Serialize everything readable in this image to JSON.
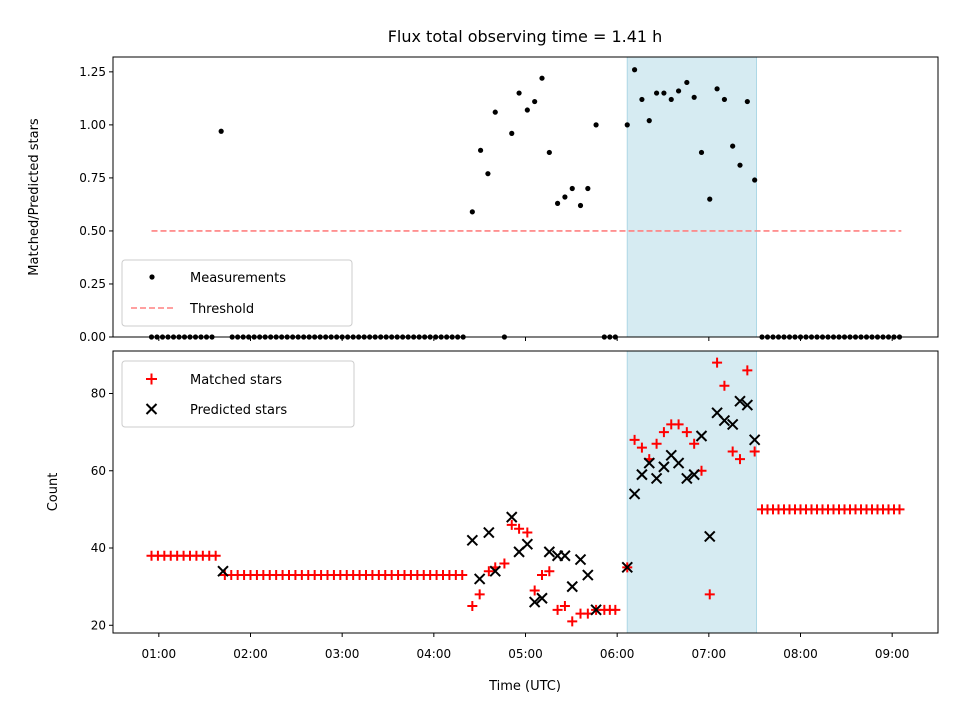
{
  "chart_data": {
    "type": "scatter",
    "title": "Flux total observing time = 1.41 h",
    "xlabel": "Time (UTC)",
    "x_ticks": [
      {
        "t": 1,
        "label": "01:00"
      },
      {
        "t": 2,
        "label": "02:00"
      },
      {
        "t": 3,
        "label": "03:00"
      },
      {
        "t": 4,
        "label": "04:00"
      },
      {
        "t": 5,
        "label": "05:00"
      },
      {
        "t": 6,
        "label": "06:00"
      },
      {
        "t": 7,
        "label": "07:00"
      },
      {
        "t": 8,
        "label": "08:00"
      },
      {
        "t": 9,
        "label": "09:00"
      }
    ],
    "xlim": [
      0.5,
      9.5
    ],
    "highlight_span": [
      6.11,
      7.52
    ],
    "colors": {
      "measure": "#000000",
      "threshold": "#ff8080",
      "matched": "#ff0000",
      "predicted": "#000000",
      "span": "#add8e6"
    },
    "top": {
      "ylabel": "Matched/Predicted stars",
      "ylim": [
        0,
        1.32
      ],
      "y_ticks": [
        "0.00",
        "0.25",
        "0.50",
        "0.75",
        "1.00",
        "1.25"
      ],
      "legend": {
        "measure": "Measurements",
        "threshold": "Threshold"
      },
      "legend_loc": "lower left",
      "threshold": {
        "value": 0.5,
        "x": [
          0.92,
          9.1
        ]
      },
      "points": [
        [
          0.92,
          0
        ],
        [
          0.98,
          0
        ],
        [
          1.04,
          0
        ],
        [
          1.1,
          0
        ],
        [
          1.16,
          0
        ],
        [
          1.22,
          0
        ],
        [
          1.28,
          0
        ],
        [
          1.34,
          0
        ],
        [
          1.4,
          0
        ],
        [
          1.46,
          0
        ],
        [
          1.52,
          0
        ],
        [
          1.58,
          0
        ],
        [
          1.68,
          0.97
        ],
        [
          1.8,
          0
        ],
        [
          1.86,
          0
        ],
        [
          1.92,
          0
        ],
        [
          1.98,
          0
        ],
        [
          2.04,
          0
        ],
        [
          2.1,
          0
        ],
        [
          2.16,
          0
        ],
        [
          2.22,
          0
        ],
        [
          2.28,
          0
        ],
        [
          2.34,
          0
        ],
        [
          2.4,
          0
        ],
        [
          2.46,
          0
        ],
        [
          2.52,
          0
        ],
        [
          2.58,
          0
        ],
        [
          2.64,
          0
        ],
        [
          2.7,
          0
        ],
        [
          2.76,
          0
        ],
        [
          2.82,
          0
        ],
        [
          2.88,
          0
        ],
        [
          2.94,
          0
        ],
        [
          3.0,
          0
        ],
        [
          3.06,
          0
        ],
        [
          3.12,
          0
        ],
        [
          3.18,
          0
        ],
        [
          3.24,
          0
        ],
        [
          3.3,
          0
        ],
        [
          3.36,
          0
        ],
        [
          3.42,
          0
        ],
        [
          3.48,
          0
        ],
        [
          3.54,
          0
        ],
        [
          3.6,
          0
        ],
        [
          3.66,
          0
        ],
        [
          3.72,
          0
        ],
        [
          3.78,
          0
        ],
        [
          3.84,
          0
        ],
        [
          3.9,
          0
        ],
        [
          3.96,
          0
        ],
        [
          4.02,
          0
        ],
        [
          4.08,
          0
        ],
        [
          4.14,
          0
        ],
        [
          4.2,
          0
        ],
        [
          4.26,
          0
        ],
        [
          4.32,
          0
        ],
        [
          4.42,
          0.59
        ],
        [
          4.51,
          0.88
        ],
        [
          4.59,
          0.77
        ],
        [
          4.67,
          1.06
        ],
        [
          4.77,
          0
        ],
        [
          4.85,
          0.96
        ],
        [
          4.93,
          1.15
        ],
        [
          5.02,
          1.07
        ],
        [
          5.1,
          1.11
        ],
        [
          5.18,
          1.22
        ],
        [
          5.26,
          0.87
        ],
        [
          5.35,
          0.63
        ],
        [
          5.43,
          0.66
        ],
        [
          5.51,
          0.7
        ],
        [
          5.6,
          0.62
        ],
        [
          5.68,
          0.7
        ],
        [
          5.77,
          1.0
        ],
        [
          5.86,
          0
        ],
        [
          5.92,
          0
        ],
        [
          5.98,
          0
        ],
        [
          6.11,
          1.0
        ],
        [
          6.19,
          1.26
        ],
        [
          6.27,
          1.12
        ],
        [
          6.35,
          1.02
        ],
        [
          6.43,
          1.15
        ],
        [
          6.51,
          1.15
        ],
        [
          6.59,
          1.12
        ],
        [
          6.67,
          1.16
        ],
        [
          6.76,
          1.2
        ],
        [
          6.84,
          1.13
        ],
        [
          6.92,
          0.87
        ],
        [
          7.01,
          0.65
        ],
        [
          7.09,
          1.17
        ],
        [
          7.17,
          1.12
        ],
        [
          7.26,
          0.9
        ],
        [
          7.34,
          0.81
        ],
        [
          7.42,
          1.11
        ],
        [
          7.5,
          0.74
        ],
        [
          7.58,
          0
        ],
        [
          7.64,
          0
        ],
        [
          7.7,
          0
        ],
        [
          7.76,
          0
        ],
        [
          7.82,
          0
        ],
        [
          7.88,
          0
        ],
        [
          7.94,
          0
        ],
        [
          8.0,
          0
        ],
        [
          8.06,
          0
        ],
        [
          8.12,
          0
        ],
        [
          8.18,
          0
        ],
        [
          8.24,
          0
        ],
        [
          8.3,
          0
        ],
        [
          8.36,
          0
        ],
        [
          8.42,
          0
        ],
        [
          8.48,
          0
        ],
        [
          8.54,
          0
        ],
        [
          8.6,
          0
        ],
        [
          8.66,
          0
        ],
        [
          8.72,
          0
        ],
        [
          8.78,
          0
        ],
        [
          8.84,
          0
        ],
        [
          8.9,
          0
        ],
        [
          8.96,
          0
        ],
        [
          9.02,
          0
        ],
        [
          9.08,
          0
        ]
      ]
    },
    "bottom": {
      "ylabel": "Count",
      "ylim": [
        18,
        91
      ],
      "y_ticks": [
        20,
        40,
        60,
        80
      ],
      "legend": {
        "matched": "Matched stars",
        "predicted": "Predicted stars"
      },
      "legend_loc": "upper left",
      "matched": [
        [
          0.92,
          38
        ],
        [
          0.99,
          38
        ],
        [
          1.06,
          38
        ],
        [
          1.13,
          38
        ],
        [
          1.2,
          38
        ],
        [
          1.27,
          38
        ],
        [
          1.34,
          38
        ],
        [
          1.41,
          38
        ],
        [
          1.48,
          38
        ],
        [
          1.55,
          38
        ],
        [
          1.62,
          38
        ],
        [
          1.72,
          33
        ],
        [
          1.79,
          33
        ],
        [
          1.86,
          33
        ],
        [
          1.93,
          33
        ],
        [
          2.0,
          33
        ],
        [
          2.07,
          33
        ],
        [
          2.14,
          33
        ],
        [
          2.21,
          33
        ],
        [
          2.28,
          33
        ],
        [
          2.35,
          33
        ],
        [
          2.42,
          33
        ],
        [
          2.49,
          33
        ],
        [
          2.56,
          33
        ],
        [
          2.63,
          33
        ],
        [
          2.7,
          33
        ],
        [
          2.77,
          33
        ],
        [
          2.84,
          33
        ],
        [
          2.91,
          33
        ],
        [
          2.98,
          33
        ],
        [
          3.05,
          33
        ],
        [
          3.12,
          33
        ],
        [
          3.19,
          33
        ],
        [
          3.26,
          33
        ],
        [
          3.33,
          33
        ],
        [
          3.4,
          33
        ],
        [
          3.47,
          33
        ],
        [
          3.54,
          33
        ],
        [
          3.61,
          33
        ],
        [
          3.68,
          33
        ],
        [
          3.75,
          33
        ],
        [
          3.82,
          33
        ],
        [
          3.89,
          33
        ],
        [
          3.96,
          33
        ],
        [
          4.03,
          33
        ],
        [
          4.1,
          33
        ],
        [
          4.17,
          33
        ],
        [
          4.24,
          33
        ],
        [
          4.31,
          33
        ],
        [
          4.42,
          25
        ],
        [
          4.5,
          28
        ],
        [
          4.6,
          34
        ],
        [
          4.67,
          35
        ],
        [
          4.77,
          36
        ],
        [
          4.85,
          46
        ],
        [
          4.93,
          45
        ],
        [
          5.02,
          44
        ],
        [
          5.1,
          29
        ],
        [
          5.18,
          33
        ],
        [
          5.26,
          34
        ],
        [
          5.35,
          24
        ],
        [
          5.43,
          25
        ],
        [
          5.51,
          21
        ],
        [
          5.6,
          23
        ],
        [
          5.68,
          23
        ],
        [
          5.77,
          24
        ],
        [
          5.86,
          24
        ],
        [
          5.92,
          24
        ],
        [
          5.98,
          24
        ],
        [
          6.11,
          35
        ],
        [
          6.19,
          68
        ],
        [
          6.27,
          66
        ],
        [
          6.35,
          63
        ],
        [
          6.43,
          67
        ],
        [
          6.51,
          70
        ],
        [
          6.59,
          72
        ],
        [
          6.67,
          72
        ],
        [
          6.76,
          70
        ],
        [
          6.84,
          67
        ],
        [
          6.92,
          60
        ],
        [
          7.01,
          28
        ],
        [
          7.09,
          88
        ],
        [
          7.17,
          82
        ],
        [
          7.26,
          65
        ],
        [
          7.34,
          63
        ],
        [
          7.42,
          86
        ],
        [
          7.5,
          65
        ],
        [
          7.58,
          50
        ],
        [
          7.64,
          50
        ],
        [
          7.7,
          50
        ],
        [
          7.76,
          50
        ],
        [
          7.82,
          50
        ],
        [
          7.88,
          50
        ],
        [
          7.94,
          50
        ],
        [
          8.0,
          50
        ],
        [
          8.06,
          50
        ],
        [
          8.12,
          50
        ],
        [
          8.18,
          50
        ],
        [
          8.24,
          50
        ],
        [
          8.3,
          50
        ],
        [
          8.36,
          50
        ],
        [
          8.42,
          50
        ],
        [
          8.48,
          50
        ],
        [
          8.54,
          50
        ],
        [
          8.6,
          50
        ],
        [
          8.66,
          50
        ],
        [
          8.72,
          50
        ],
        [
          8.78,
          50
        ],
        [
          8.84,
          50
        ],
        [
          8.9,
          50
        ],
        [
          8.96,
          50
        ],
        [
          9.02,
          50
        ],
        [
          9.08,
          50
        ]
      ],
      "predicted": [
        [
          1.7,
          34
        ],
        [
          4.42,
          42
        ],
        [
          4.5,
          32
        ],
        [
          4.6,
          44
        ],
        [
          4.67,
          34
        ],
        [
          4.85,
          48
        ],
        [
          4.93,
          39
        ],
        [
          5.02,
          41
        ],
        [
          5.1,
          26
        ],
        [
          5.18,
          27
        ],
        [
          5.26,
          39
        ],
        [
          5.35,
          38
        ],
        [
          5.43,
          38
        ],
        [
          5.51,
          30
        ],
        [
          5.6,
          37
        ],
        [
          5.68,
          33
        ],
        [
          5.77,
          24
        ],
        [
          6.11,
          35
        ],
        [
          6.19,
          54
        ],
        [
          6.27,
          59
        ],
        [
          6.35,
          62
        ],
        [
          6.43,
          58
        ],
        [
          6.51,
          61
        ],
        [
          6.59,
          64
        ],
        [
          6.67,
          62
        ],
        [
          6.76,
          58
        ],
        [
          6.84,
          59
        ],
        [
          6.92,
          69
        ],
        [
          7.01,
          43
        ],
        [
          7.09,
          75
        ],
        [
          7.17,
          73
        ],
        [
          7.26,
          72
        ],
        [
          7.34,
          78
        ],
        [
          7.42,
          77
        ],
        [
          7.5,
          68
        ]
      ]
    }
  }
}
